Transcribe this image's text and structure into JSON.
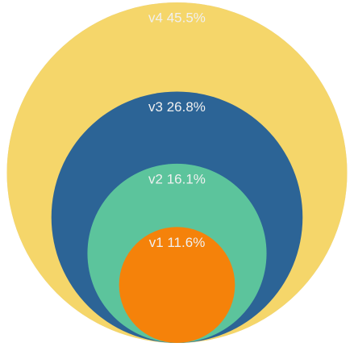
{
  "chart_data": {
    "type": "nested-circles",
    "title": "",
    "series": [
      {
        "label": "v1 11.6%",
        "name": "v1",
        "value": 11.6,
        "color": "#f5820a",
        "text_color": "#f0f0f0"
      },
      {
        "label": "v2 16.1%",
        "name": "v2",
        "value": 16.1,
        "color": "#5cc49c",
        "text_color": "#f0f0f0"
      },
      {
        "label": "v3 26.8%",
        "name": "v3",
        "value": 26.8,
        "color": "#2c6496",
        "text_color": "#f0f0f0"
      },
      {
        "label": "v4 45.5%",
        "name": "v4",
        "value": 45.5,
        "color": "#f5d66a",
        "text_color": "#f0f0f0"
      }
    ],
    "background_circle_color": "#d3d3d3"
  }
}
